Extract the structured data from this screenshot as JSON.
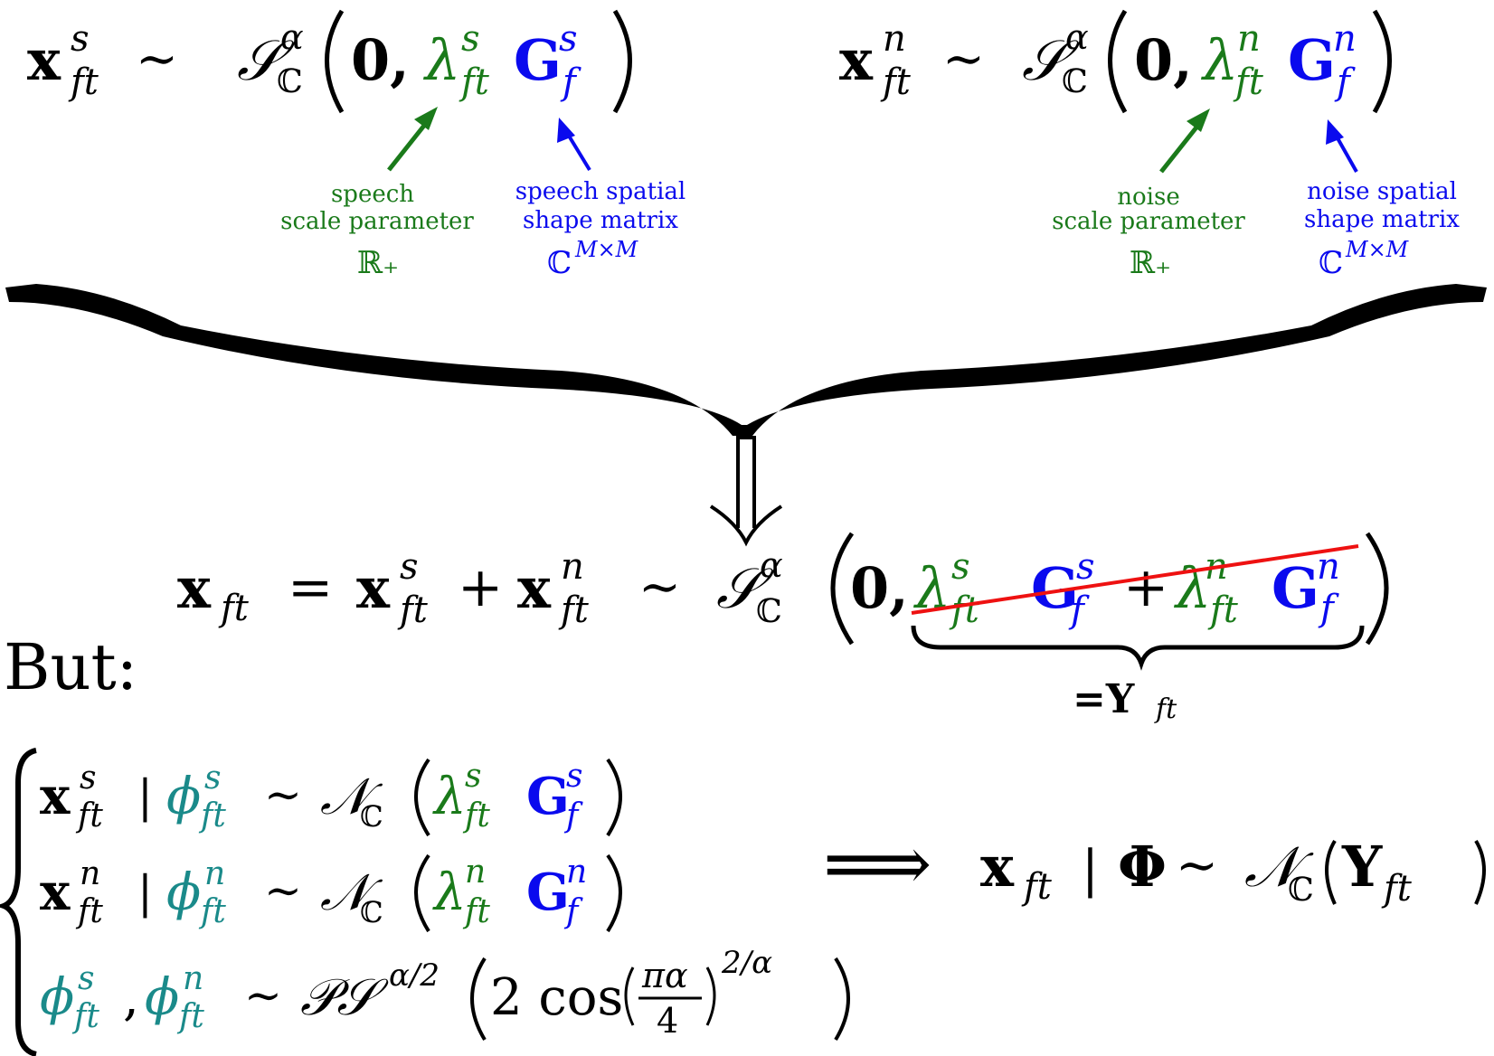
{
  "colors": {
    "black": "#000000",
    "green": "#1a7a1a",
    "blue": "#0a0aee",
    "teal": "#1a8a8a",
    "red": "#ee1111"
  },
  "top_left": {
    "x": "x",
    "sup": "s",
    "sub": "ft",
    "sim": "∼",
    "dist": "𝒮",
    "dist_sup": "α",
    "dist_sub": "ℂ",
    "zero": "0,",
    "lambda": "λ",
    "lambda_sup": "s",
    "lambda_sub": "ft",
    "G": "G",
    "G_sup": "s",
    "G_sub": "f"
  },
  "top_right": {
    "x": "x",
    "sup": "n",
    "sub": "ft",
    "sim": "∼",
    "dist": "𝒮",
    "dist_sup": "α",
    "dist_sub": "ℂ",
    "zero": "0,",
    "lambda": "λ",
    "lambda_sup": "n",
    "lambda_sub": "ft",
    "G": "G",
    "G_sup": "n",
    "G_sub": "f"
  },
  "annotations": {
    "speech_scale": [
      "speech",
      "scale parameter",
      "ℝ₊"
    ],
    "speech_spatial": [
      "speech spatial",
      "shape matrix",
      "ℂ",
      "M×M"
    ],
    "noise_scale": [
      "noise",
      "scale parameter",
      "ℝ₊"
    ],
    "noise_spatial": [
      "noise spatial",
      "shape matrix",
      "ℂ",
      "M×M"
    ]
  },
  "middle": {
    "lhs": "x",
    "lhs_sub": "ft",
    "eq": "=",
    "plus": "+",
    "sim": "∼",
    "zero": "0,",
    "underbrace_label": "=Y",
    "underbrace_sub": "ft"
  },
  "but_label": "But:",
  "cases": {
    "bar": "|",
    "normal": "𝒩",
    "normal_sub": "ℂ",
    "phi": "ϕ",
    "comma": ",",
    "ps": "𝒫𝒮",
    "ps_sup": "α/2",
    "two_cos": "2 cos",
    "pi_alpha": "πα",
    "four": "4",
    "exp": "2/α"
  },
  "implies": "⟹",
  "result": {
    "x": "x",
    "sub": "ft",
    "bar": "|",
    "phi": "Φ",
    "sim": "∼",
    "normal": "𝒩",
    "normal_sub": "ℂ",
    "Y": "Y",
    "Y_sub": "ft"
  }
}
